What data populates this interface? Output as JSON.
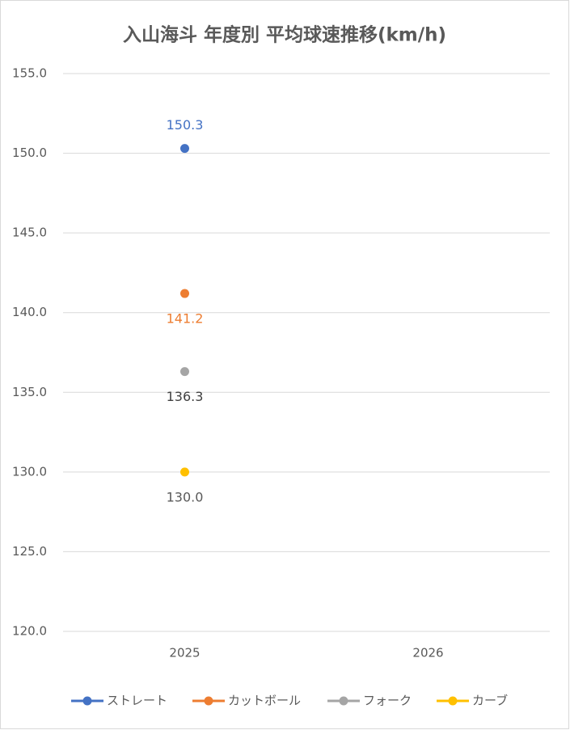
{
  "chart_data": {
    "type": "line",
    "title": "入山海斗 年度別 平均球速推移(km/h)",
    "categories": [
      "2025",
      "2026"
    ],
    "ylim": [
      120,
      155
    ],
    "yticks": [
      {
        "value": 120,
        "label": "120.0"
      },
      {
        "value": 125,
        "label": "125.0"
      },
      {
        "value": 130,
        "label": "130.0"
      },
      {
        "value": 135,
        "label": "135.0"
      },
      {
        "value": 140,
        "label": "140.0"
      },
      {
        "value": 145,
        "label": "145.0"
      },
      {
        "value": 150,
        "label": "150.0"
      },
      {
        "value": 155,
        "label": "155.0"
      }
    ],
    "grid": true,
    "legend": "bottom",
    "series": [
      {
        "name": "ストレート",
        "color": "#4472c4",
        "label_color": "#4472c4",
        "label_position": "above",
        "values": [
          150.3,
          null
        ],
        "value_labels": [
          "150.3",
          null
        ]
      },
      {
        "name": "カットボール",
        "color": "#ed7d31",
        "label_color": "#ed7d31",
        "label_position": "below",
        "values": [
          141.2,
          null
        ],
        "value_labels": [
          "141.2",
          null
        ]
      },
      {
        "name": "フォーク",
        "color": "#a5a5a5",
        "label_color": "#404040",
        "label_position": "below",
        "values": [
          136.3,
          null
        ],
        "value_labels": [
          "136.3",
          null
        ]
      },
      {
        "name": "カーブ",
        "color": "#ffc000",
        "label_color": "#595959",
        "label_position": "below",
        "values": [
          130,
          null
        ],
        "value_labels": [
          "130.0",
          null
        ]
      }
    ]
  }
}
